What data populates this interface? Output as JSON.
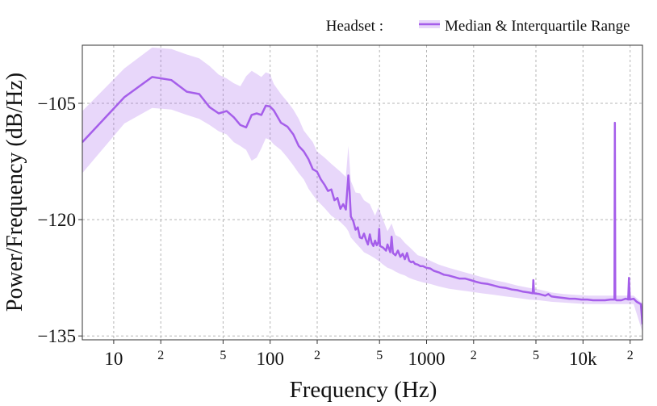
{
  "chart_data": {
    "type": "line",
    "title": "",
    "xlabel": "Frequency (Hz)",
    "ylabel": "Power/Frequency (dB/Hz)",
    "xscale": "log",
    "xlim": [
      6.3,
      24000
    ],
    "ylim": [
      -135.5,
      -97.5
    ],
    "grid": true,
    "legend": {
      "position": "top-right",
      "prefix": "Headset :",
      "label": "Median & Interquartile Range"
    },
    "x_ticks": [
      {
        "value": 10,
        "label": "10",
        "major": true
      },
      {
        "value": 20,
        "label": "2",
        "major": false
      },
      {
        "value": 50,
        "label": "5",
        "major": false
      },
      {
        "value": 100,
        "label": "100",
        "major": true
      },
      {
        "value": 200,
        "label": "2",
        "major": false
      },
      {
        "value": 500,
        "label": "5",
        "major": false
      },
      {
        "value": 1000,
        "label": "1000",
        "major": true
      },
      {
        "value": 2000,
        "label": "2",
        "major": false
      },
      {
        "value": 5000,
        "label": "5",
        "major": false
      },
      {
        "value": 10000,
        "label": "10k",
        "major": true
      },
      {
        "value": 20000,
        "label": "2",
        "major": false
      }
    ],
    "y_ticks": [
      {
        "value": -105,
        "label": "−105"
      },
      {
        "value": -120,
        "label": "−120"
      },
      {
        "value": -135,
        "label": "−135"
      }
    ],
    "series": [
      {
        "name": "Median",
        "color": "#a55eea",
        "points": [
          [
            6.3,
            -110.0
          ],
          [
            11.7,
            -104.2
          ],
          [
            17.6,
            -101.6
          ],
          [
            23.4,
            -102.0
          ],
          [
            29.3,
            -103.5
          ],
          [
            35.2,
            -103.8
          ],
          [
            41.0,
            -105.5
          ],
          [
            46.9,
            -106.3
          ],
          [
            52.7,
            -106.0
          ],
          [
            58.6,
            -106.8
          ],
          [
            64.5,
            -107.8
          ],
          [
            70.3,
            -108.1
          ],
          [
            76.2,
            -106.5
          ],
          [
            82.0,
            -106.3
          ],
          [
            87.9,
            -106.5
          ],
          [
            93.8,
            -105.3
          ],
          [
            99.6,
            -105.4
          ],
          [
            105.5,
            -105.9
          ],
          [
            117.2,
            -107.5
          ],
          [
            128.9,
            -108.0
          ],
          [
            140.6,
            -109.0
          ],
          [
            152.3,
            -110.5
          ],
          [
            164.1,
            -111.2
          ],
          [
            175.8,
            -112.2
          ],
          [
            187.5,
            -113.5
          ],
          [
            199.2,
            -113.8
          ],
          [
            210.9,
            -114.8
          ],
          [
            222.7,
            -115.5
          ],
          [
            234.4,
            -116.3
          ],
          [
            246.1,
            -116.1
          ],
          [
            257.8,
            -117.5
          ],
          [
            269.5,
            -117.2
          ],
          [
            281.3,
            -118.6
          ],
          [
            293.0,
            -118.0
          ],
          [
            304.7,
            -118.7
          ],
          [
            316.4,
            -114.3
          ],
          [
            322.3,
            -116.5
          ],
          [
            328.1,
            -119.6
          ],
          [
            339.8,
            -120.2
          ],
          [
            351.6,
            -121.3
          ],
          [
            363.3,
            -121.0
          ],
          [
            375.0,
            -122.3
          ],
          [
            386.7,
            -122.4
          ],
          [
            398.4,
            -121.8
          ],
          [
            410.2,
            -122.6
          ],
          [
            421.9,
            -123.2
          ],
          [
            433.6,
            -121.9
          ],
          [
            445.3,
            -123.0
          ],
          [
            457.0,
            -123.4
          ],
          [
            468.8,
            -122.7
          ],
          [
            480.5,
            -123.3
          ],
          [
            492.2,
            -122.9
          ],
          [
            498.0,
            -121.2
          ],
          [
            503.9,
            -123.4
          ],
          [
            527.3,
            -123.6
          ],
          [
            550.8,
            -124.0
          ],
          [
            562.5,
            -123.2
          ],
          [
            586.0,
            -124.2
          ],
          [
            597.7,
            -122.2
          ],
          [
            609.4,
            -124.3
          ],
          [
            633.0,
            -124.6
          ],
          [
            656.2,
            -124.0
          ],
          [
            680.0,
            -124.8
          ],
          [
            703.1,
            -124.4
          ],
          [
            726.6,
            -125.1
          ],
          [
            750.0,
            -124.3
          ],
          [
            773.4,
            -125.3
          ],
          [
            796.9,
            -125.5
          ],
          [
            820.3,
            -125.4
          ],
          [
            843.8,
            -125.7
          ],
          [
            878.9,
            -125.8
          ],
          [
            914.1,
            -126.0
          ],
          [
            949.2,
            -126.0
          ],
          [
            996.1,
            -126.2
          ],
          [
            1054.7,
            -126.3
          ],
          [
            1113.3,
            -126.6
          ],
          [
            1195.3,
            -126.8
          ],
          [
            1289.1,
            -127.1
          ],
          [
            1382.8,
            -127.2
          ],
          [
            1500.0,
            -127.4
          ],
          [
            1617.2,
            -127.6
          ],
          [
            1757.8,
            -127.6
          ],
          [
            1910.2,
            -127.8
          ],
          [
            2062.5,
            -128.0
          ],
          [
            2250.0,
            -128.2
          ],
          [
            2460.9,
            -128.3
          ],
          [
            2695.3,
            -128.5
          ],
          [
            2929.7,
            -128.7
          ],
          [
            3187.5,
            -128.8
          ],
          [
            3492.2,
            -129.0
          ],
          [
            3796.9,
            -129.1
          ],
          [
            4148.4,
            -129.3
          ],
          [
            4523.4,
            -129.4
          ],
          [
            4769.5,
            -129.5
          ],
          [
            4816.4,
            -127.8
          ],
          [
            4863.3,
            -129.5
          ],
          [
            5250.0,
            -129.6
          ],
          [
            5742.2,
            -129.8
          ],
          [
            6000.0,
            -129.6
          ],
          [
            6281.3,
            -129.9
          ],
          [
            6843.8,
            -130.0
          ],
          [
            7500.0,
            -130.1
          ],
          [
            8203.1,
            -130.2
          ],
          [
            8906.3,
            -130.2
          ],
          [
            9750.0,
            -130.3
          ],
          [
            10664.1,
            -130.3
          ],
          [
            11601.6,
            -130.4
          ],
          [
            12656.3,
            -130.4
          ],
          [
            13828.1,
            -130.4
          ],
          [
            15000.0,
            -130.3
          ],
          [
            15890.6,
            -130.3
          ],
          [
            15984.4,
            -107.5
          ],
          [
            16078.1,
            -130.3
          ],
          [
            16406.3,
            -130.4
          ],
          [
            17578.1,
            -130.4
          ],
          [
            18750.0,
            -130.2
          ],
          [
            19453.1,
            -130.3
          ],
          [
            19687.5,
            -127.5
          ],
          [
            19921.9,
            -130.3
          ],
          [
            21093.8,
            -130.2
          ],
          [
            22031.3,
            -130.6
          ],
          [
            23437.5,
            -130.9
          ],
          [
            24000.0,
            -133.5
          ]
        ]
      }
    ],
    "band": {
      "name": "Interquartile Range",
      "color": "#a55eea",
      "x": [
        6.3,
        11.7,
        17.6,
        23.4,
        29.3,
        35.2,
        41.0,
        46.9,
        52.7,
        58.6,
        64.5,
        70.3,
        76.2,
        82.0,
        87.9,
        93.8,
        99.6,
        105.5,
        117.2,
        128.9,
        140.6,
        152.3,
        164.1,
        175.8,
        187.5,
        199.2,
        222.7,
        246.1,
        281.3,
        304.7,
        316.4,
        328.1,
        351.6,
        375.0,
        398.4,
        433.6,
        468.8,
        492.2,
        527.3,
        562.5,
        597.7,
        633.0,
        680.0,
        726.6,
        773.4,
        820.3,
        878.9,
        949.2,
        1054.7,
        1195.3,
        1382.8,
        1617.2,
        1910.2,
        2250.0,
        2695.3,
        3187.5,
        3796.9,
        4523.4,
        5250.0,
        6281.3,
        7500.0,
        8906.3,
        10664.1,
        12656.3,
        15000.0,
        17578.1,
        21093.8,
        24000.0
      ],
      "upper": [
        -106.0,
        -100.5,
        -97.8,
        -98.0,
        -98.7,
        -99.2,
        -100.2,
        -101.3,
        -101.8,
        -102.4,
        -102.8,
        -101.5,
        -100.8,
        -101.2,
        -101.6,
        -101.0,
        -101.2,
        -102.5,
        -103.8,
        -104.8,
        -105.8,
        -107.0,
        -108.5,
        -109.3,
        -110.0,
        -111.2,
        -112.0,
        -112.8,
        -113.8,
        -114.5,
        -110.5,
        -115.0,
        -116.5,
        -116.6,
        -117.5,
        -118.0,
        -119.5,
        -118.4,
        -120.0,
        -121.5,
        -120.5,
        -122.0,
        -122.3,
        -123.0,
        -123.5,
        -124.0,
        -124.6,
        -124.8,
        -125.3,
        -125.8,
        -126.2,
        -126.6,
        -127.0,
        -127.4,
        -127.8,
        -128.1,
        -128.5,
        -128.8,
        -129.0,
        -129.4,
        -129.6,
        -129.7,
        -129.8,
        -129.8,
        -129.8,
        -129.8,
        -129.8,
        -130.8
      ],
      "lower": [
        -114.0,
        -107.6,
        -105.6,
        -105.8,
        -106.5,
        -107.0,
        -107.8,
        -108.6,
        -109.0,
        -110.0,
        -110.5,
        -111.0,
        -112.4,
        -112.0,
        -110.8,
        -109.5,
        -109.7,
        -110.3,
        -111.0,
        -112.0,
        -113.0,
        -114.0,
        -114.8,
        -116.0,
        -116.8,
        -117.5,
        -118.5,
        -119.5,
        -120.3,
        -121.0,
        -121.5,
        -122.3,
        -123.0,
        -123.6,
        -124.2,
        -124.6,
        -125.0,
        -125.3,
        -125.8,
        -126.2,
        -126.4,
        -126.7,
        -127.0,
        -127.2,
        -127.5,
        -127.7,
        -127.9,
        -128.1,
        -128.3,
        -128.6,
        -128.9,
        -129.1,
        -129.3,
        -129.5,
        -129.7,
        -129.9,
        -130.1,
        -130.3,
        -130.4,
        -130.6,
        -130.7,
        -130.8,
        -130.9,
        -130.9,
        -130.9,
        -130.9,
        -130.9,
        -134.5
      ]
    }
  }
}
